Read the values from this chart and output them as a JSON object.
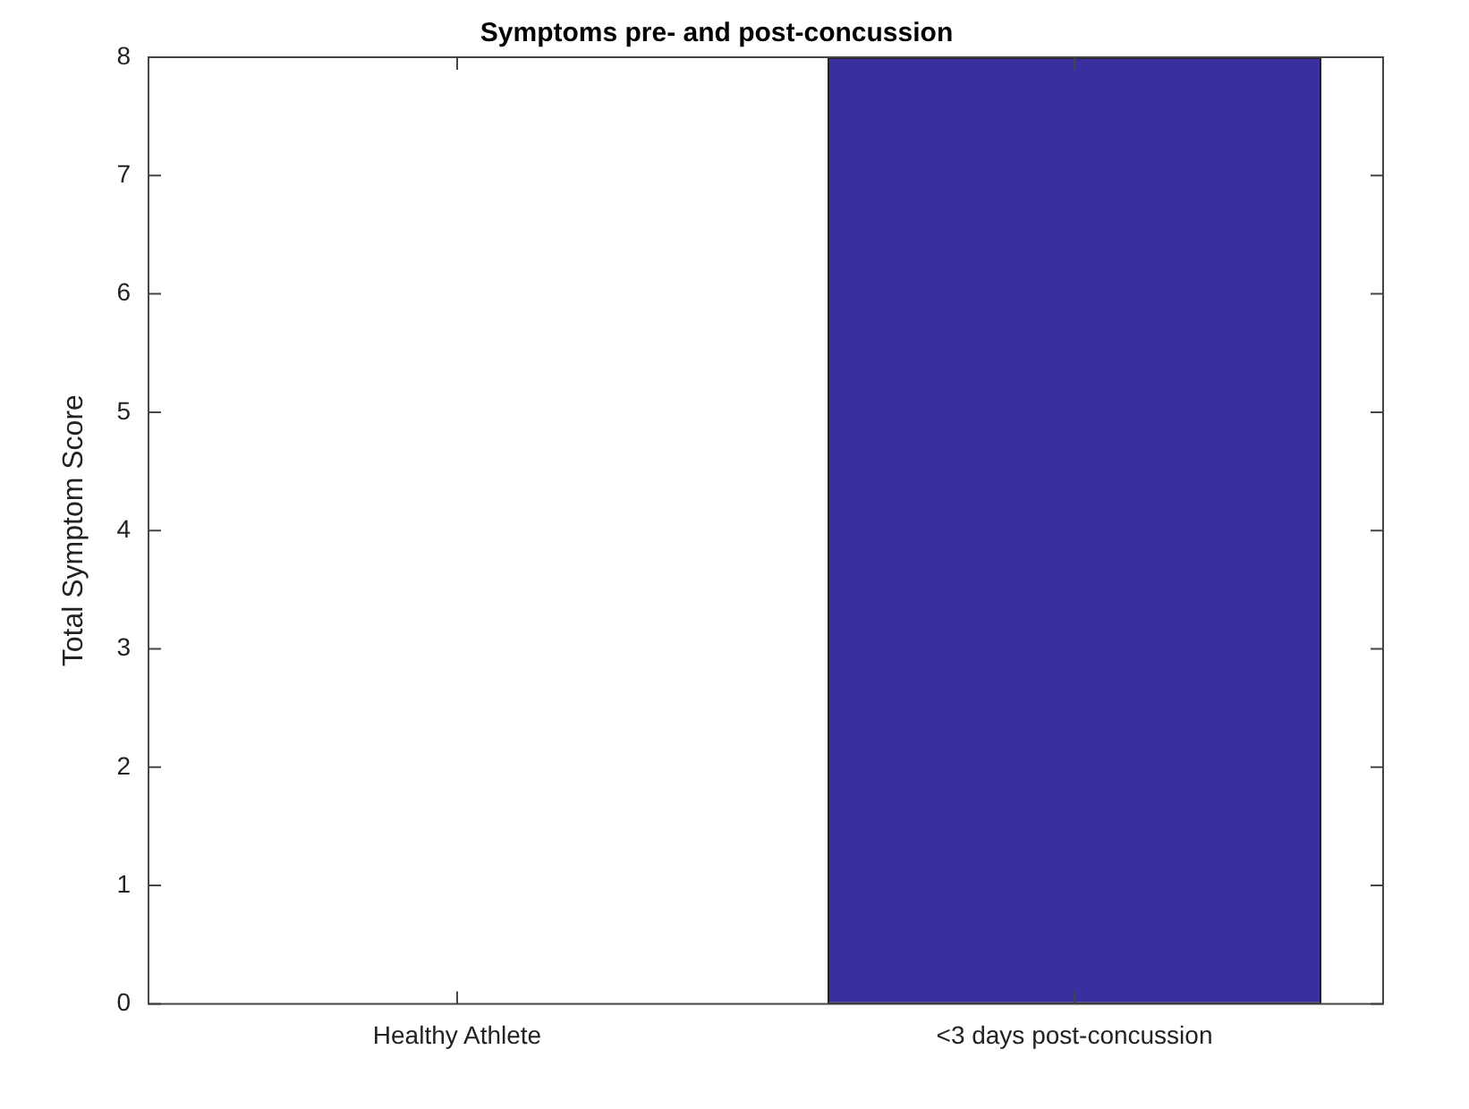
{
  "chart_data": {
    "type": "bar",
    "title": "Symptoms pre- and post-concussion",
    "ylabel": "Total Symptom Score",
    "categories": [
      "Healthy Athlete",
      "<3 days post-concussion"
    ],
    "values": [
      0,
      8
    ],
    "color": "#3a2f9e",
    "ylim": [
      0,
      8
    ],
    "yticks": [
      0,
      1,
      2,
      3,
      4,
      5,
      6,
      7,
      8
    ],
    "grid": false,
    "legend": false
  }
}
